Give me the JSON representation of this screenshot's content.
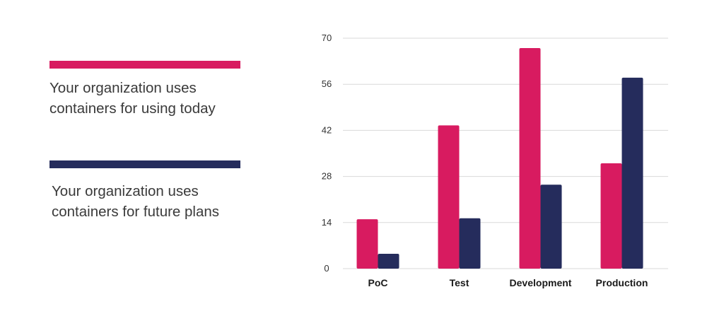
{
  "colors": {
    "series_today": "#d81b60",
    "series_future": "#252c5c"
  },
  "legend": [
    {
      "text": "Your organization uses containers for using today",
      "color": "#d81b60"
    },
    {
      "text": "Your organization uses containers for future plans",
      "color": "#252c5c"
    }
  ],
  "chart_data": {
    "type": "bar",
    "title": "",
    "xlabel": "",
    "ylabel": "",
    "categories": [
      "PoC",
      "Test",
      "Development",
      "Production"
    ],
    "series": [
      {
        "values": [
          15,
          43.5,
          67,
          32
        ],
        "color": "#d81b60"
      },
      {
        "values": [
          4.5,
          15.3,
          25.5,
          58
        ],
        "color": "#252c5c"
      }
    ],
    "ylim": [
      0,
      70
    ],
    "yticks": [
      "0",
      "14",
      "28",
      "42",
      "56",
      "70"
    ],
    "grid": true,
    "legend_position": "left"
  }
}
